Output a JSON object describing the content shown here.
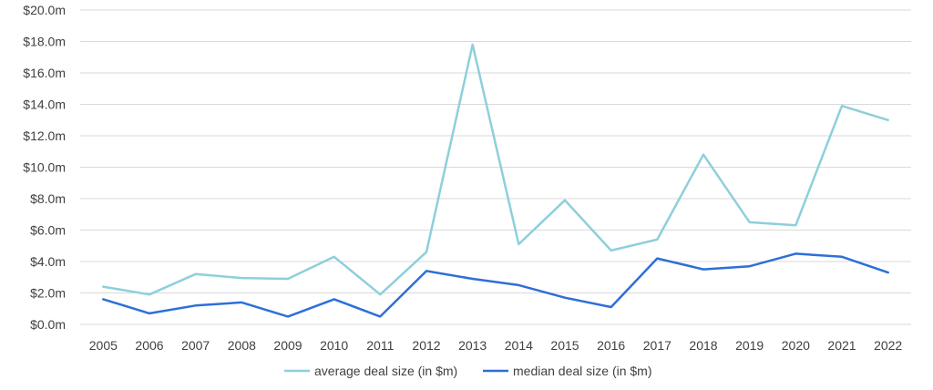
{
  "chart_data": {
    "type": "line",
    "title": "",
    "xlabel": "",
    "ylabel": "",
    "categories": [
      "2005",
      "2006",
      "2007",
      "2008",
      "2009",
      "2010",
      "2011",
      "2012",
      "2013",
      "2014",
      "2015",
      "2016",
      "2017",
      "2018",
      "2019",
      "2020",
      "2021",
      "2022"
    ],
    "ylim": [
      0,
      20
    ],
    "y_ticks": [
      0,
      2,
      4,
      6,
      8,
      10,
      12,
      14,
      16,
      18,
      20
    ],
    "y_tick_labels": [
      "$0.0m",
      "$2.0m",
      "$4.0m",
      "$6.0m",
      "$8.0m",
      "$10.0m",
      "$12.0m",
      "$14.0m",
      "$16.0m",
      "$18.0m",
      "$20.0m"
    ],
    "grid": true,
    "legend_position": "bottom-center",
    "series": [
      {
        "name": "average deal size (in $m)",
        "color": "#8ECFDB",
        "values": [
          2.4,
          1.9,
          3.2,
          2.95,
          2.9,
          4.3,
          1.9,
          4.6,
          17.8,
          5.1,
          7.9,
          4.7,
          5.4,
          10.8,
          6.5,
          6.3,
          13.9,
          13.0
        ]
      },
      {
        "name": "median deal size (in $m)",
        "color": "#2E6FD8",
        "values": [
          1.6,
          0.7,
          1.2,
          1.4,
          0.5,
          1.6,
          0.5,
          3.4,
          2.9,
          2.5,
          1.7,
          1.1,
          4.2,
          3.5,
          3.7,
          4.5,
          4.3,
          3.3
        ]
      }
    ]
  }
}
